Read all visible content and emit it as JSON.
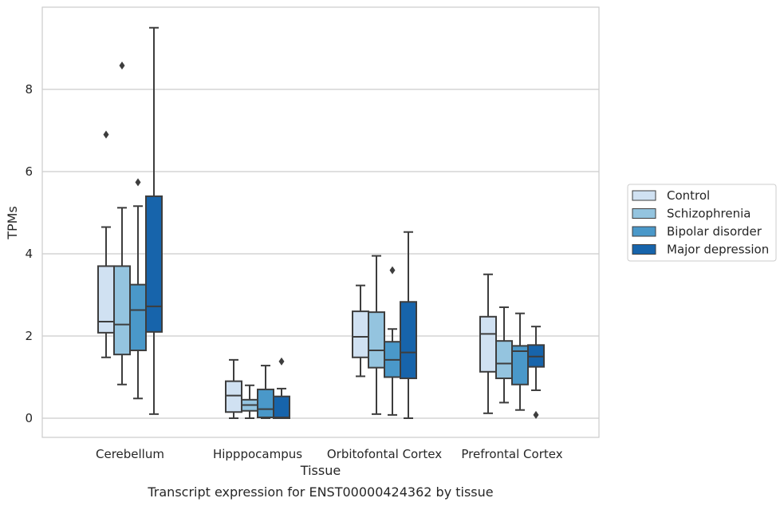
{
  "chart_data": {
    "type": "box",
    "caption": "Transcript expression for ENST00000424362 by tissue",
    "xlabel": "Tissue",
    "ylabel": "TPMs",
    "ylim": [
      -0.45,
      10.0
    ],
    "yticks": [
      0,
      2,
      4,
      6,
      8
    ],
    "grid": true,
    "legend_position": "right",
    "categories": [
      "Cerebellum",
      "Hipppocampus",
      "Orbitofontal Cortex",
      "Prefrontal Cortex"
    ],
    "series": [
      {
        "name": "Control",
        "color": "#d0e1f2",
        "boxes": [
          {
            "whisker_low": 1.48,
            "q1": 2.08,
            "median": 2.35,
            "q3": 3.7,
            "whisker_high": 4.65,
            "outliers": [
              6.9
            ]
          },
          {
            "whisker_low": 0.0,
            "q1": 0.15,
            "median": 0.55,
            "q3": 0.9,
            "whisker_high": 1.42,
            "outliers": []
          },
          {
            "whisker_low": 1.02,
            "q1": 1.48,
            "median": 1.98,
            "q3": 2.6,
            "whisker_high": 3.23,
            "outliers": []
          },
          {
            "whisker_low": 0.12,
            "q1": 1.13,
            "median": 2.05,
            "q3": 2.47,
            "whisker_high": 3.5,
            "outliers": []
          }
        ]
      },
      {
        "name": "Schizophrenia",
        "color": "#94c4df",
        "boxes": [
          {
            "whisker_low": 0.82,
            "q1": 1.55,
            "median": 2.28,
            "q3": 3.7,
            "whisker_high": 5.12,
            "outliers": [
              8.58
            ]
          },
          {
            "whisker_low": 0.0,
            "q1": 0.18,
            "median": 0.32,
            "q3": 0.45,
            "whisker_high": 0.8,
            "outliers": []
          },
          {
            "whisker_low": 0.1,
            "q1": 1.23,
            "median": 1.65,
            "q3": 2.58,
            "whisker_high": 3.95,
            "outliers": []
          },
          {
            "whisker_low": 0.38,
            "q1": 0.97,
            "median": 1.33,
            "q3": 1.88,
            "whisker_high": 2.7,
            "outliers": []
          }
        ]
      },
      {
        "name": "Bipolar disorder",
        "color": "#4a98c9",
        "boxes": [
          {
            "whisker_low": 0.48,
            "q1": 1.65,
            "median": 2.63,
            "q3": 3.25,
            "whisker_high": 5.16,
            "outliers": [
              5.74
            ]
          },
          {
            "whisker_low": 0.0,
            "q1": 0.02,
            "median": 0.22,
            "q3": 0.7,
            "whisker_high": 1.28,
            "outliers": []
          },
          {
            "whisker_low": 0.08,
            "q1": 1.0,
            "median": 1.42,
            "q3": 1.86,
            "whisker_high": 2.17,
            "outliers": [
              3.6
            ]
          },
          {
            "whisker_low": 0.2,
            "q1": 0.82,
            "median": 1.63,
            "q3": 1.76,
            "whisker_high": 2.55,
            "outliers": []
          }
        ]
      },
      {
        "name": "Major depression",
        "color": "#1764ab",
        "boxes": [
          {
            "whisker_low": 0.1,
            "q1": 2.1,
            "median": 2.72,
            "q3": 5.4,
            "whisker_high": 9.5,
            "outliers": []
          },
          {
            "whisker_low": 0.0,
            "q1": 0.0,
            "median": 0.02,
            "q3": 0.53,
            "whisker_high": 0.72,
            "outliers": [
              1.38
            ]
          },
          {
            "whisker_low": 0.0,
            "q1": 0.97,
            "median": 1.6,
            "q3": 2.83,
            "whisker_high": 4.53,
            "outliers": []
          },
          {
            "whisker_low": 0.68,
            "q1": 1.25,
            "median": 1.5,
            "q3": 1.78,
            "whisker_high": 2.23,
            "outliers": [
              0.08
            ]
          }
        ]
      }
    ]
  }
}
